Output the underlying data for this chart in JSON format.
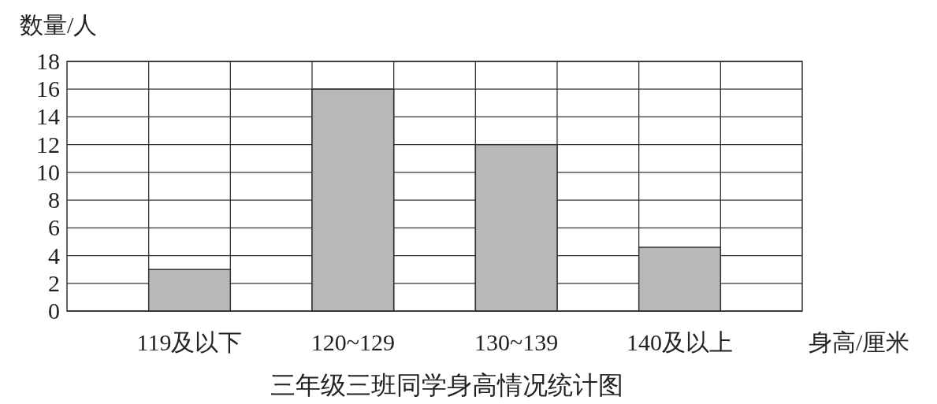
{
  "chart_data": {
    "type": "bar",
    "title": "三年级三班同学身高情况统计图",
    "xlabel": "身高/厘米",
    "ylabel": "数量/人",
    "categories": [
      "119及以下",
      "120~129",
      "130~139",
      "140及以上"
    ],
    "values": [
      3,
      16,
      12,
      4.6
    ],
    "color": "#b8b8b8",
    "ylim": [
      0,
      18
    ],
    "yticks": [
      0,
      2,
      4,
      6,
      8,
      10,
      12,
      14,
      16,
      18
    ],
    "grid": true
  }
}
